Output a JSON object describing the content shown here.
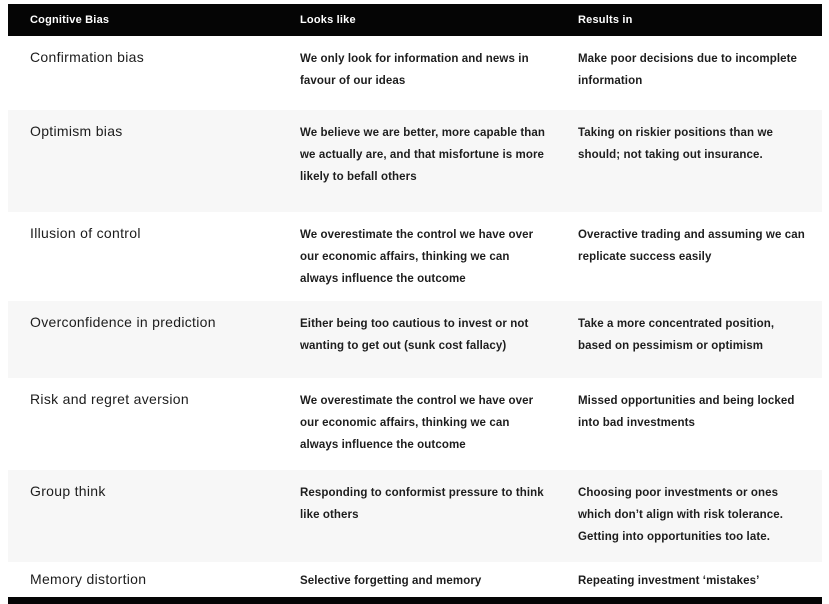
{
  "table": {
    "colors": {
      "header_bg": "#050505",
      "header_text": "#ffffff",
      "row_bg": "#ffffff",
      "row_alt_bg": "#f7f7f7",
      "body_text": "#1d1d1d"
    },
    "columns": [
      {
        "label": "Cognitive Bias"
      },
      {
        "label": "Looks like"
      },
      {
        "label": "Results in"
      }
    ],
    "rows": [
      {
        "bias": "Confirmation bias",
        "looks_like": "We only look for information and news in favour of our ideas",
        "results_in": "Make poor decisions due to incomplete information"
      },
      {
        "bias": "Optimism bias",
        "looks_like": "We believe we are better, more capable than we actually are, and that misfortune is more likely to befall others",
        "results_in": "Taking on riskier positions than we should; not taking out insurance."
      },
      {
        "bias": "Illusion of control",
        "looks_like": "We overestimate the control we have over our economic affairs, thinking we can always influence the outcome",
        "results_in": "Overactive trading and assuming we can replicate success easily"
      },
      {
        "bias": "Overconfidence in prediction",
        "looks_like": "Either being too cautious to invest or not wanting to get out (sunk cost fallacy)",
        "results_in": "Take a more concentrated position, based on pessimism or optimism"
      },
      {
        "bias": "Risk and regret aversion",
        "looks_like": "We overestimate the control we have over our economic affairs, thinking we can always influence the outcome",
        "results_in": "Missed opportunities and being locked into bad investments"
      },
      {
        "bias": "Group think",
        "looks_like": "Responding to conformist pressure to think like others",
        "results_in": "Choosing poor investments or ones which don’t align with risk tolerance. Getting into opportunities too late."
      },
      {
        "bias": "Memory distortion",
        "looks_like": "Selective forgetting and memory",
        "results_in": "Repeating investment ‘mistakes’"
      }
    ]
  }
}
